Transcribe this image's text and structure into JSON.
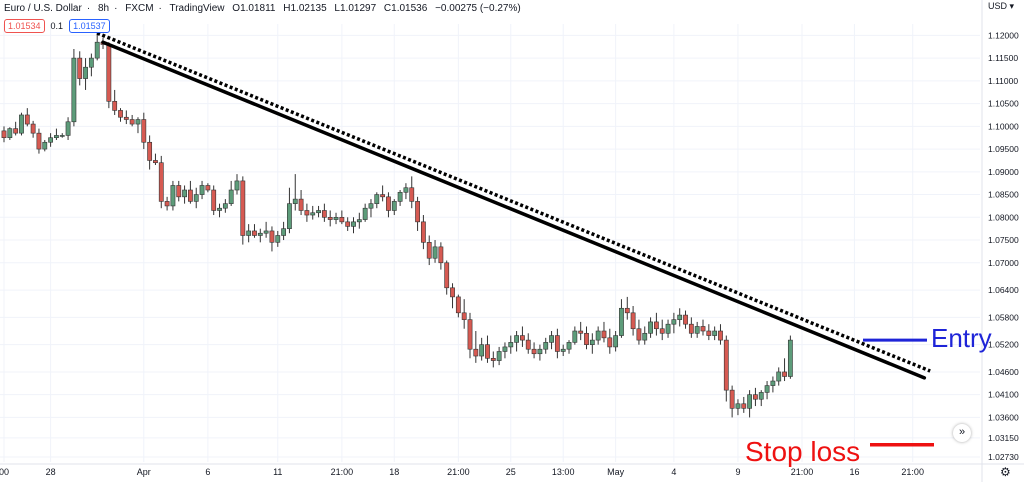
{
  "header": {
    "symbol": "Euro / U.S. Dollar",
    "interval": "8h",
    "source": "FXCM",
    "platform": "TradingView",
    "open": "O1.01811",
    "high": "H1.02135",
    "low": "L1.01297",
    "close": "C1.01536",
    "change": "−0.00275 (−0.27%)",
    "bid": "1.01534",
    "spread": "0.1",
    "ask": "1.01537",
    "currency": "USD"
  },
  "colors": {
    "up": "#5d9c7a",
    "down": "#d65a52",
    "entry": "#1e24d8",
    "stop": "#ee1111",
    "trend": "#000000"
  },
  "annotations": {
    "entry": "Entry",
    "stop": "Stop loss"
  },
  "chart_data": {
    "type": "candlestick",
    "ylim": [
      1.0262,
      1.1225
    ],
    "y_ticks": [
      "1.12000",
      "1.11500",
      "1.11000",
      "1.10500",
      "1.10000",
      "1.09500",
      "1.09000",
      "1.08500",
      "1.08000",
      "1.07500",
      "1.07000",
      "1.06400",
      "1.05800",
      "1.05200",
      "1.04600",
      "1.04100",
      "1.03600",
      "1.03150",
      "1.02730"
    ],
    "x_ticks": [
      {
        "i": 0,
        "label": "00"
      },
      {
        "i": 8,
        "label": "28"
      },
      {
        "i": 24,
        "label": "Apr"
      },
      {
        "i": 35,
        "label": "6"
      },
      {
        "i": 47,
        "label": "11"
      },
      {
        "i": 58,
        "label": "21:00"
      },
      {
        "i": 67,
        "label": "18"
      },
      {
        "i": 78,
        "label": "21:00"
      },
      {
        "i": 87,
        "label": "25"
      },
      {
        "i": 96,
        "label": "13:00"
      },
      {
        "i": 105,
        "label": "May"
      },
      {
        "i": 115,
        "label": "4"
      },
      {
        "i": 126,
        "label": "9"
      },
      {
        "i": 137,
        "label": "21:00"
      },
      {
        "i": 146,
        "label": "16"
      },
      {
        "i": 156,
        "label": "21:00"
      }
    ],
    "candles": [
      [
        1.099,
        1.1,
        1.0965,
        1.0975
      ],
      [
        1.0975,
        1.0998,
        1.097,
        1.0995
      ],
      [
        1.0995,
        1.101,
        1.098,
        1.0985
      ],
      [
        1.0985,
        1.103,
        1.098,
        1.1025
      ],
      [
        1.1025,
        1.104,
        1.1,
        1.1005
      ],
      [
        1.1005,
        1.1012,
        1.0975,
        1.0985
      ],
      [
        1.0985,
        1.0995,
        1.094,
        1.095
      ],
      [
        1.095,
        1.097,
        1.0945,
        1.0965
      ],
      [
        1.0965,
        1.0985,
        1.0955,
        1.0975
      ],
      [
        1.0975,
        1.0995,
        1.097,
        1.098
      ],
      [
        1.098,
        1.0985,
        1.0975,
        1.098
      ],
      [
        1.098,
        1.102,
        1.097,
        1.101
      ],
      [
        1.101,
        1.117,
        1.1,
        1.115
      ],
      [
        1.115,
        1.1165,
        1.109,
        1.1105
      ],
      [
        1.1105,
        1.115,
        1.108,
        1.113
      ],
      [
        1.113,
        1.116,
        1.111,
        1.115
      ],
      [
        1.115,
        1.121,
        1.1145,
        1.1185
      ],
      [
        1.1185,
        1.1195,
        1.117,
        1.118
      ],
      [
        1.118,
        1.1185,
        1.104,
        1.1055
      ],
      [
        1.1055,
        1.108,
        1.1025,
        1.1035
      ],
      [
        1.1035,
        1.104,
        1.101,
        1.102
      ],
      [
        1.102,
        1.1035,
        1.1005,
        1.1015
      ],
      [
        1.1015,
        1.1025,
        1.1,
        1.1005
      ],
      [
        1.1005,
        1.102,
        1.0985,
        1.1015
      ],
      [
        1.1015,
        1.103,
        1.095,
        1.0965
      ],
      [
        1.0965,
        1.098,
        1.0905,
        1.0925
      ],
      [
        1.0925,
        1.094,
        1.0915,
        1.092
      ],
      [
        1.092,
        1.0935,
        1.082,
        1.0835
      ],
      [
        1.0835,
        1.0845,
        1.0815,
        1.0825
      ],
      [
        1.0825,
        1.088,
        1.0815,
        1.087
      ],
      [
        1.087,
        1.088,
        1.0835,
        1.0845
      ],
      [
        1.0845,
        1.087,
        1.083,
        1.086
      ],
      [
        1.086,
        1.088,
        1.083,
        1.0835
      ],
      [
        1.0835,
        1.0865,
        1.082,
        1.085
      ],
      [
        1.085,
        1.088,
        1.084,
        1.087
      ],
      [
        1.087,
        1.0875,
        1.0855,
        1.086
      ],
      [
        1.086,
        1.087,
        1.0805,
        1.0815
      ],
      [
        1.0815,
        1.083,
        1.08,
        1.082
      ],
      [
        1.082,
        1.084,
        1.081,
        1.083
      ],
      [
        1.083,
        1.088,
        1.0825,
        1.086
      ],
      [
        1.086,
        1.0895,
        1.085,
        1.088
      ],
      [
        1.088,
        1.089,
        1.074,
        1.076
      ],
      [
        1.076,
        1.0785,
        1.0745,
        1.077
      ],
      [
        1.077,
        1.0785,
        1.0755,
        1.076
      ],
      [
        1.076,
        1.0775,
        1.0745,
        1.0765
      ],
      [
        1.0765,
        1.079,
        1.0755,
        1.077
      ],
      [
        1.077,
        1.078,
        1.0725,
        1.0745
      ],
      [
        1.0745,
        1.077,
        1.0735,
        1.076
      ],
      [
        1.076,
        1.079,
        1.075,
        1.0775
      ],
      [
        1.0775,
        1.0865,
        1.0765,
        1.083
      ],
      [
        1.083,
        1.0895,
        1.0815,
        1.084
      ],
      [
        1.084,
        1.086,
        1.0805,
        1.0815
      ],
      [
        1.0815,
        1.083,
        1.079,
        1.0805
      ],
      [
        1.0805,
        1.0825,
        1.0795,
        1.081
      ],
      [
        1.081,
        1.0825,
        1.08,
        1.0815
      ],
      [
        1.0815,
        1.083,
        1.079,
        1.08
      ],
      [
        1.08,
        1.0815,
        1.078,
        1.0795
      ],
      [
        1.0795,
        1.081,
        1.0785,
        1.08
      ],
      [
        1.08,
        1.0815,
        1.0785,
        1.079
      ],
      [
        1.079,
        1.08,
        1.077,
        1.078
      ],
      [
        1.078,
        1.08,
        1.0765,
        1.079
      ],
      [
        1.079,
        1.081,
        1.0775,
        1.0795
      ],
      [
        1.0795,
        1.083,
        1.079,
        1.082
      ],
      [
        1.082,
        1.084,
        1.08,
        1.083
      ],
      [
        1.083,
        1.0855,
        1.082,
        1.085
      ],
      [
        1.085,
        1.087,
        1.0835,
        1.0845
      ],
      [
        1.0845,
        1.0855,
        1.08,
        1.0815
      ],
      [
        1.0815,
        1.084,
        1.0805,
        1.0835
      ],
      [
        1.0835,
        1.086,
        1.0825,
        1.0855
      ],
      [
        1.0855,
        1.0875,
        1.084,
        1.0865
      ],
      [
        1.0865,
        1.089,
        1.082,
        1.0835
      ],
      [
        1.0835,
        1.0845,
        1.077,
        1.079
      ],
      [
        1.079,
        1.0805,
        1.073,
        1.0745
      ],
      [
        1.0745,
        1.076,
        1.0695,
        1.071
      ],
      [
        1.071,
        1.075,
        1.07,
        1.0735
      ],
      [
        1.0735,
        1.0745,
        1.0685,
        1.07
      ],
      [
        1.07,
        1.0705,
        1.063,
        1.0645
      ],
      [
        1.0645,
        1.0655,
        1.06,
        1.0625
      ],
      [
        1.0625,
        1.063,
        1.058,
        1.059
      ],
      [
        1.059,
        1.062,
        1.0555,
        1.0575
      ],
      [
        1.0575,
        1.059,
        1.049,
        1.051
      ],
      [
        1.051,
        1.055,
        1.048,
        1.0495
      ],
      [
        1.0495,
        1.0535,
        1.0485,
        1.052
      ],
      [
        1.052,
        1.054,
        1.048,
        1.049
      ],
      [
        1.049,
        1.0505,
        1.047,
        1.0485
      ],
      [
        1.0485,
        1.0515,
        1.0475,
        1.0505
      ],
      [
        1.0505,
        1.0525,
        1.049,
        1.0515
      ],
      [
        1.0515,
        1.054,
        1.05,
        1.0525
      ],
      [
        1.0525,
        1.055,
        1.0505,
        1.054
      ],
      [
        1.054,
        1.056,
        1.0515,
        1.053
      ],
      [
        1.053,
        1.0545,
        1.05,
        1.051
      ],
      [
        1.051,
        1.0525,
        1.049,
        1.05
      ],
      [
        1.05,
        1.052,
        1.0485,
        1.051
      ],
      [
        1.051,
        1.0535,
        1.05,
        1.0525
      ],
      [
        1.0525,
        1.055,
        1.051,
        1.054
      ],
      [
        1.054,
        1.0555,
        1.049,
        1.0505
      ],
      [
        1.0505,
        1.052,
        1.0495,
        1.051
      ],
      [
        1.051,
        1.053,
        1.05,
        1.0525
      ],
      [
        1.0525,
        1.056,
        1.052,
        1.055
      ],
      [
        1.055,
        1.057,
        1.053,
        1.0545
      ],
      [
        1.0545,
        1.056,
        1.051,
        1.052
      ],
      [
        1.052,
        1.0545,
        1.05,
        1.053
      ],
      [
        1.053,
        1.056,
        1.052,
        1.055
      ],
      [
        1.055,
        1.057,
        1.0525,
        1.0535
      ],
      [
        1.0535,
        1.0555,
        1.05,
        1.0515
      ],
      [
        1.0515,
        1.055,
        1.0505,
        1.054
      ],
      [
        1.054,
        1.062,
        1.0535,
        1.06
      ],
      [
        1.06,
        1.0625,
        1.0575,
        1.059
      ],
      [
        1.059,
        1.0605,
        1.054,
        1.0555
      ],
      [
        1.0555,
        1.0575,
        1.052,
        1.053
      ],
      [
        1.053,
        1.056,
        1.052,
        1.0545
      ],
      [
        1.0545,
        1.058,
        1.0535,
        1.057
      ],
      [
        1.057,
        1.059,
        1.054,
        1.0555
      ],
      [
        1.0555,
        1.0575,
        1.053,
        1.0545
      ],
      [
        1.0545,
        1.0575,
        1.0535,
        1.0565
      ],
      [
        1.0565,
        1.059,
        1.0545,
        1.0575
      ],
      [
        1.0575,
        1.06,
        1.056,
        1.0585
      ],
      [
        1.0585,
        1.0595,
        1.0555,
        1.0565
      ],
      [
        1.0565,
        1.058,
        1.0535,
        1.0545
      ],
      [
        1.0545,
        1.057,
        1.0535,
        1.056
      ],
      [
        1.056,
        1.0575,
        1.054,
        1.055
      ],
      [
        1.055,
        1.0565,
        1.053,
        1.054
      ],
      [
        1.054,
        1.056,
        1.053,
        1.055
      ],
      [
        1.055,
        1.0565,
        1.052,
        1.053
      ],
      [
        1.053,
        1.054,
        1.0395,
        1.042
      ],
      [
        1.042,
        1.043,
        1.036,
        1.038
      ],
      [
        1.038,
        1.04,
        1.0365,
        1.039
      ],
      [
        1.039,
        1.0405,
        1.037,
        1.038
      ],
      [
        1.038,
        1.042,
        1.036,
        1.041
      ],
      [
        1.041,
        1.0425,
        1.0385,
        1.04
      ],
      [
        1.04,
        1.042,
        1.0385,
        1.0415
      ],
      [
        1.0415,
        1.044,
        1.04,
        1.043
      ],
      [
        1.043,
        1.045,
        1.0415,
        1.044
      ],
      [
        1.044,
        1.047,
        1.043,
        1.046
      ],
      [
        1.046,
        1.049,
        1.044,
        1.045
      ],
      [
        1.045,
        1.054,
        1.0445,
        1.053
      ]
    ],
    "trendline_solid": {
      "from": [
        17,
        1.1185
      ],
      "to": [
        158,
        1.0447
      ]
    },
    "trendline_dotted": {
      "from": [
        16,
        1.1205
      ],
      "to": [
        159,
        1.0462
      ]
    },
    "entry_level": 1.053,
    "stop_level": 1.03
  }
}
